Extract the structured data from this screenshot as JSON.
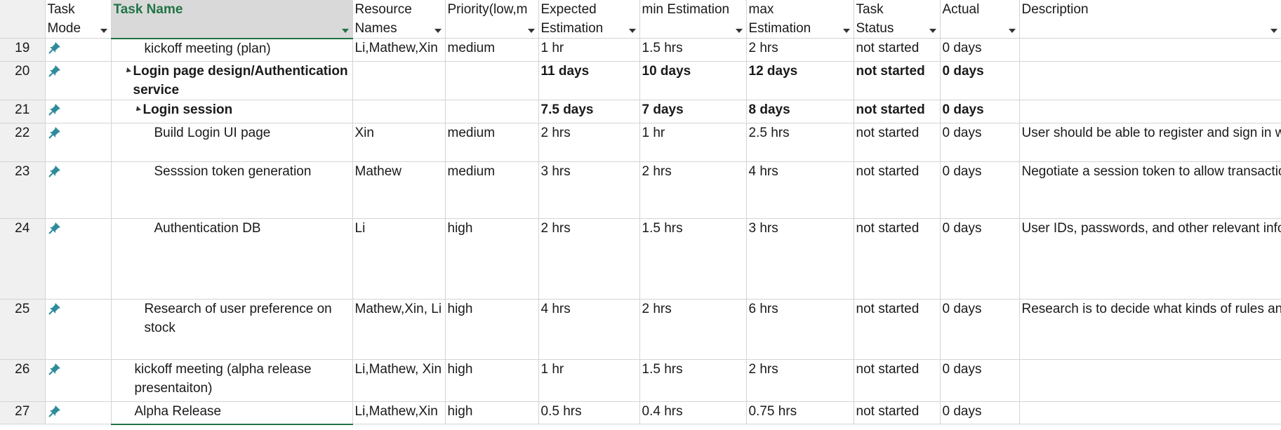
{
  "columns": {
    "task_mode": "Task Mode",
    "task_name": "Task Name",
    "resource_names": "Resource Names",
    "priority": "Priority(low,m",
    "expected": "Expected Estimation",
    "min": "min Estimation",
    "max": "max Estimation",
    "status": "Task Status",
    "actual": "Actual",
    "description": "Description"
  },
  "rows": [
    {
      "id": "19",
      "name": "kickoff meeting (plan)",
      "resources": "Li,Mathew,Xin",
      "priority": "medium",
      "expected": "1 hr",
      "min": "1.5 hrs",
      "max": "2 hrs",
      "status": "not started",
      "actual": "0 days",
      "description": ""
    },
    {
      "id": "20",
      "name": "Login page design/Authentication service",
      "resources": "",
      "priority": "",
      "expected": "11 days",
      "min": "10 days",
      "max": "12 days",
      "status": "not started",
      "actual": "0 days",
      "description": ""
    },
    {
      "id": "21",
      "name": "Login session",
      "resources": "",
      "priority": "",
      "expected": "7.5 days",
      "min": "7 days",
      "max": "8 days",
      "status": "not started",
      "actual": "0 days",
      "description": ""
    },
    {
      "id": "22",
      "name": "Build Login UI page",
      "resources": "Xin",
      "priority": "medium",
      "expected": "2 hrs",
      "min": "1 hr",
      "max": "2.5 hrs",
      "status": "not started",
      "actual": "0 days",
      "description": "User should be able to register and sign in with email and password"
    },
    {
      "id": "23",
      "name": "Sesssion token generation",
      "resources": "Mathew",
      "priority": "medium",
      "expected": "3 hrs",
      "min": "2 hrs",
      "max": "4 hrs",
      "status": "not started",
      "actual": "0 days",
      "description": "Negotiate a session token to allow transaction authentication without repeated logins"
    },
    {
      "id": "24",
      "name": "Authentication DB",
      "resources": "Li",
      "priority": "high",
      "expected": "2 hrs",
      "min": "1.5 hrs",
      "max": "3 hrs",
      "status": "not started",
      "actual": "0 days",
      "description": "User IDs, passwords, and other relevant info should be registered in DB. Passwords and session keys should be hashed and salted ideally"
    },
    {
      "id": "25",
      "name": "Research of  user preference on stock",
      "resources": "Mathew,Xin, Li",
      "priority": "high",
      "expected": "4 hrs",
      "min": "2 hrs",
      "max": "6 hrs",
      "status": "not started",
      "actual": "0 days",
      "description": "Research is to decide what kinds of rules and rule templates we should include in the rules engine"
    },
    {
      "id": "26",
      "name": "kickoff meeting (alpha release presentaiton)",
      "resources": "Li,Mathew, Xin",
      "priority": "high",
      "expected": "1 hr",
      "min": "1.5 hrs",
      "max": "2 hrs",
      "status": "not started",
      "actual": "0 days",
      "description": ""
    },
    {
      "id": "27",
      "name": "Alpha Release",
      "resources": "Li,Mathew,Xin",
      "priority": "high",
      "expected": "0.5 hrs",
      "min": "0.4 hrs",
      "max": "0.75 hrs",
      "status": "not started",
      "actual": "0 days",
      "description": ""
    }
  ],
  "icons": {
    "task_mode": "pin-icon",
    "toggle": "collapse-triangle-icon",
    "column_menu": "chevron-down-icon"
  },
  "colors": {
    "accent": "#217346",
    "pin": "#2e8b9a"
  }
}
